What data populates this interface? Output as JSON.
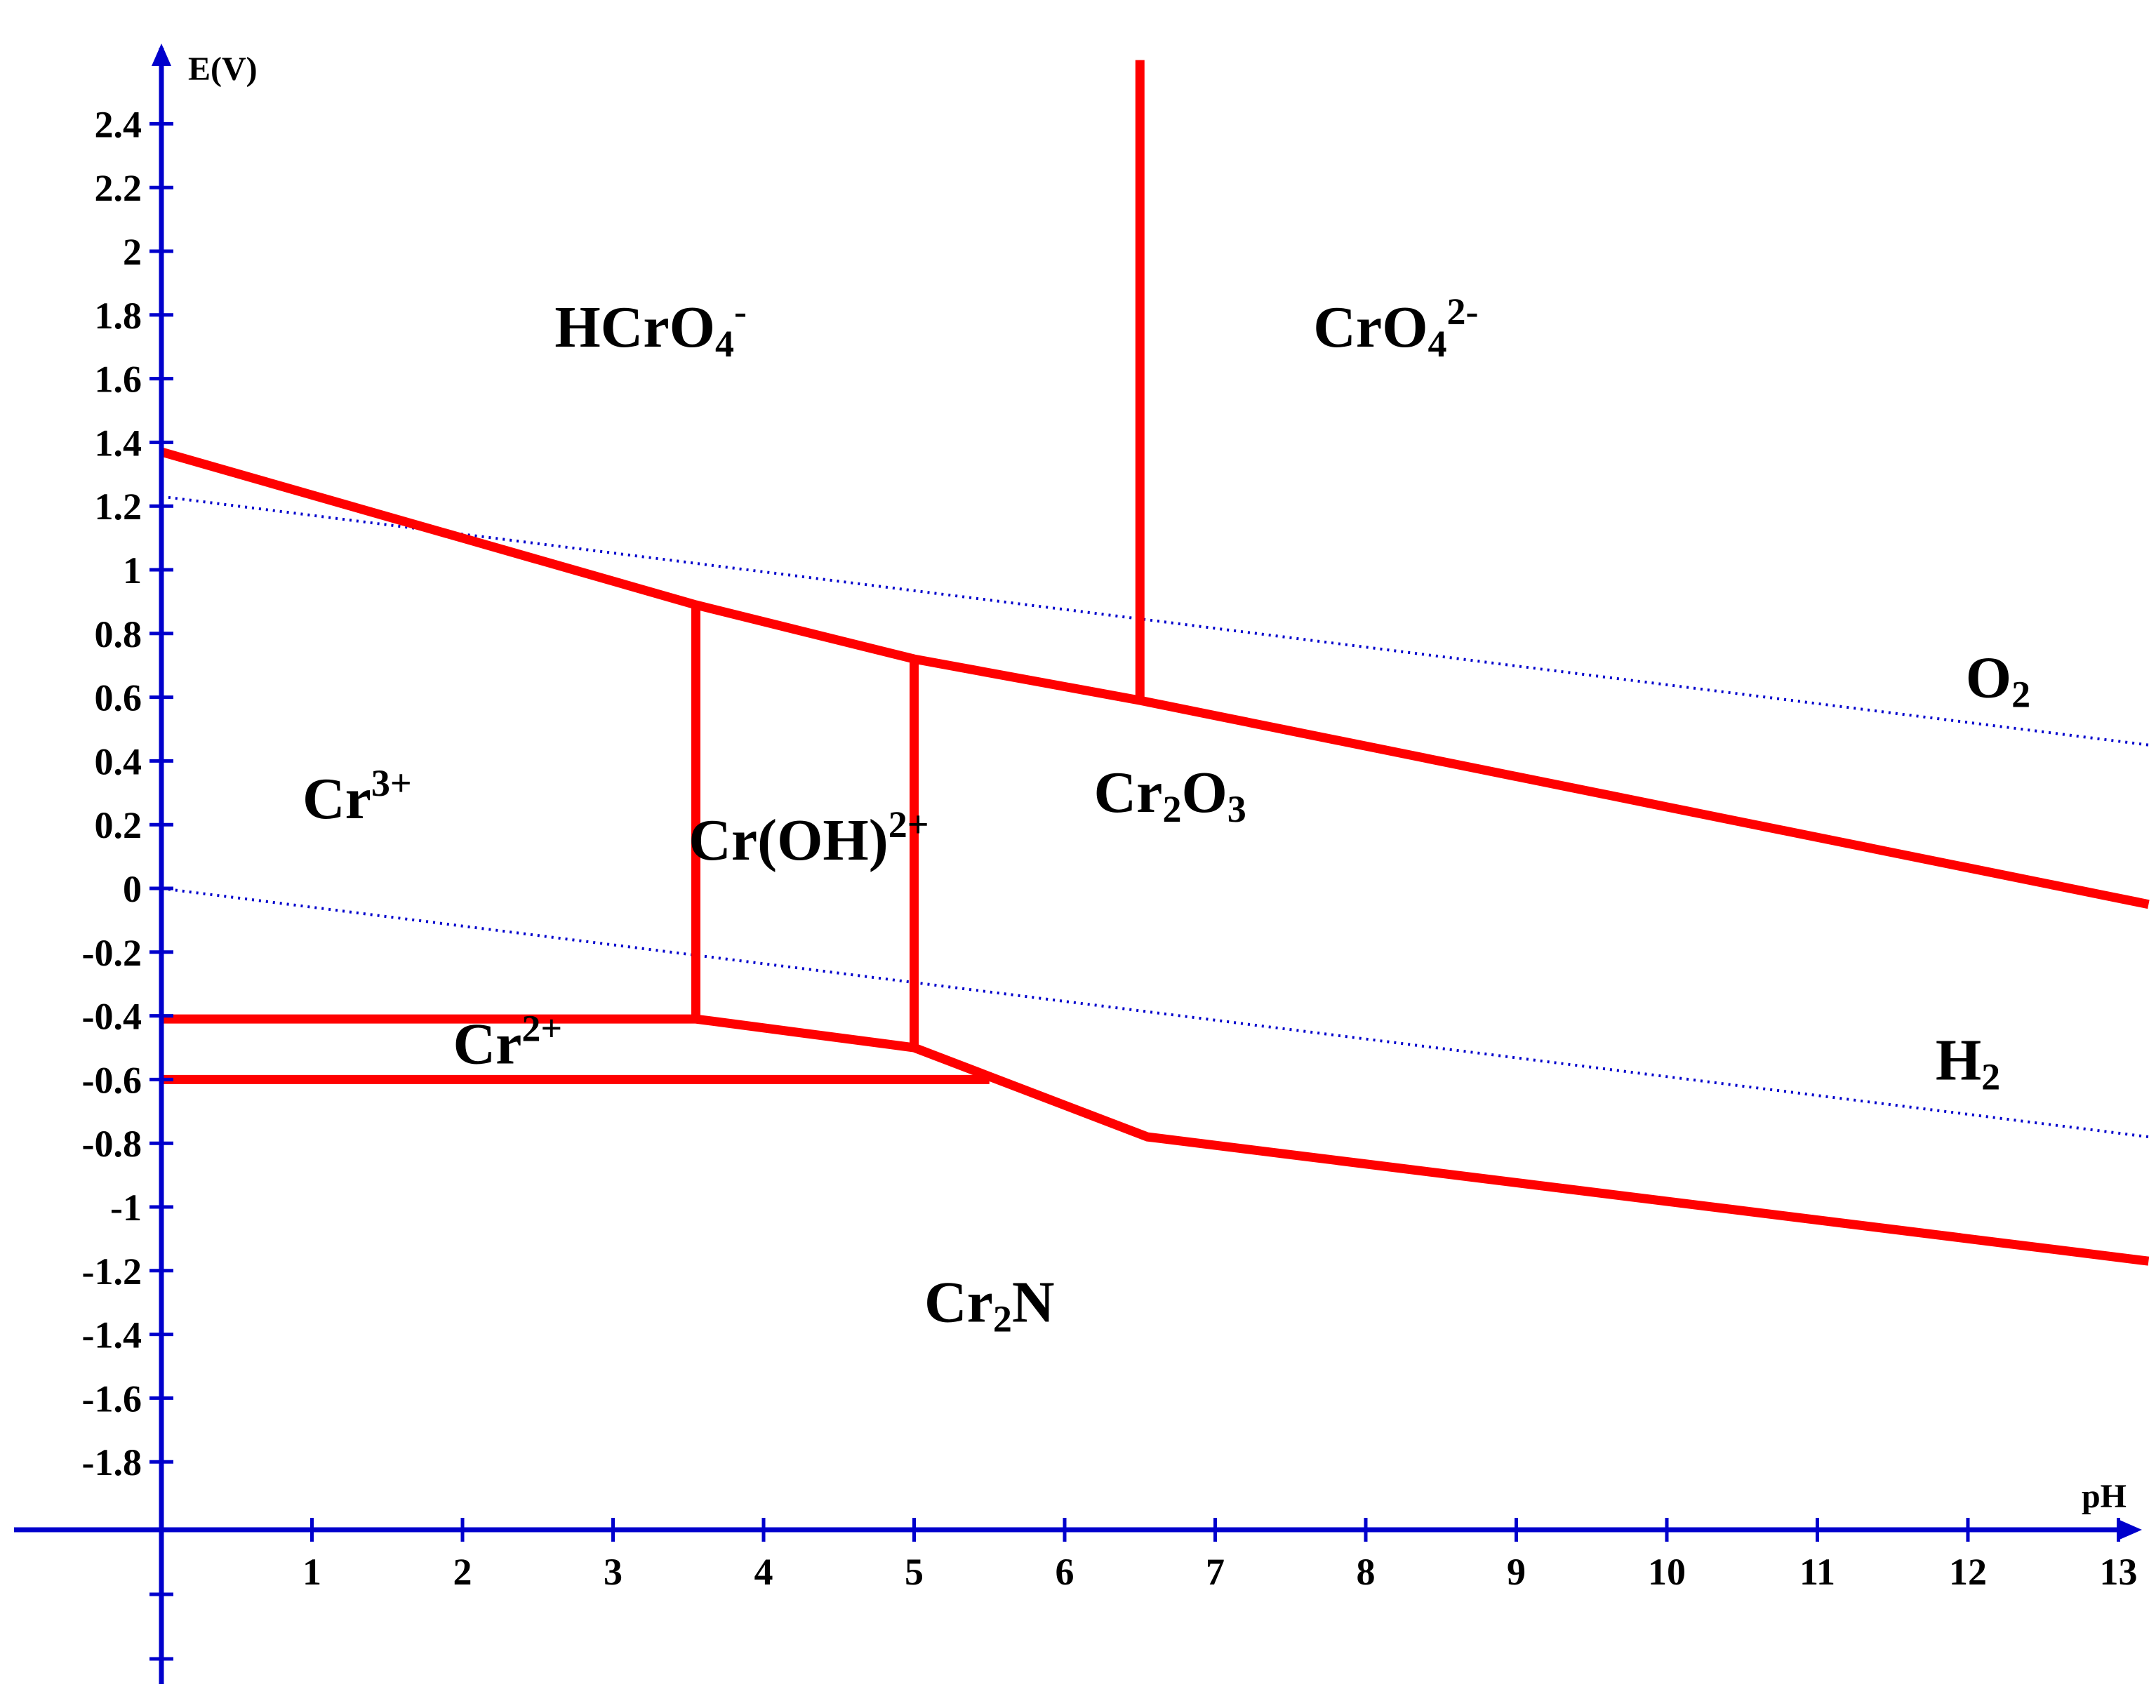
{
  "chart_data": {
    "type": "line",
    "xlabel": "pH",
    "ylabel": "E(V)",
    "xlim": [
      0,
      13
    ],
    "ylim": [
      -1.9,
      2.4
    ],
    "x_ticks": [
      1,
      2,
      3,
      4,
      5,
      6,
      7,
      8,
      9,
      10,
      11,
      12,
      13
    ],
    "y_ticks": [
      2.4,
      2.2,
      2,
      1.8,
      1.6,
      1.4,
      1.2,
      1,
      0.8,
      0.6,
      0.4,
      0.2,
      0,
      -0.2,
      -0.4,
      -0.6,
      -0.8,
      -1,
      -1.2,
      -1.4,
      -1.6,
      -1.8
    ],
    "colors": {
      "boundary": "#ff0000",
      "water_line": "#0000cc",
      "axis": "#0000cc"
    },
    "boundaries": [
      {
        "points": [
          [
            0,
            1.37
          ],
          [
            3.55,
            0.89
          ],
          [
            5.0,
            0.72
          ],
          [
            6.5,
            0.59
          ],
          [
            13.2,
            -0.05
          ]
        ]
      },
      {
        "points": [
          [
            6.5,
            0.59
          ],
          [
            6.5,
            2.6
          ]
        ]
      },
      {
        "points": [
          [
            3.55,
            0.89
          ],
          [
            3.55,
            -0.41
          ]
        ]
      },
      {
        "points": [
          [
            5.0,
            0.72
          ],
          [
            5.0,
            -0.5
          ]
        ]
      },
      {
        "points": [
          [
            0,
            -0.41
          ],
          [
            3.55,
            -0.41
          ],
          [
            5.0,
            -0.5
          ],
          [
            6.55,
            -0.78
          ],
          [
            13.2,
            -1.17
          ]
        ]
      },
      {
        "points": [
          [
            0,
            -0.6
          ],
          [
            5.5,
            -0.6
          ]
        ]
      }
    ],
    "water_lines": [
      {
        "points": [
          [
            0,
            1.23
          ],
          [
            13.2,
            0.45
          ]
        ]
      },
      {
        "points": [
          [
            0,
            0.0
          ],
          [
            13.2,
            -0.78
          ]
        ]
      }
    ],
    "regions": [
      {
        "base": "HCrO",
        "sub": "4",
        "sup": "-",
        "x": 3.25,
        "y": 1.7
      },
      {
        "base": "CrO",
        "sub": "4",
        "sup": "2-",
        "x": 8.2,
        "y": 1.7
      },
      {
        "base": "Cr",
        "sub": "",
        "sup": "3+",
        "x": 1.3,
        "y": 0.22
      },
      {
        "base": "Cr(OH)",
        "sub": "",
        "sup": "2+",
        "x": 4.3,
        "y": 0.09
      },
      {
        "base": "Cr",
        "sub": "2",
        "sup": "",
        "sub2": "O",
        "sub3": "3",
        "x": 6.7,
        "y": 0.24
      },
      {
        "base": "Cr",
        "sub": "",
        "sup": "2+",
        "x": 2.3,
        "y": -0.55
      },
      {
        "base": "Cr",
        "sub": "2",
        "sup": "",
        "sub2": "N",
        "x": 5.5,
        "y": -1.36
      },
      {
        "base": "O",
        "sub": "2",
        "sup": "",
        "x": 12.2,
        "y": 0.6
      },
      {
        "base": "H",
        "sub": "2",
        "sup": "",
        "x": 12.0,
        "y": -0.6
      }
    ]
  }
}
